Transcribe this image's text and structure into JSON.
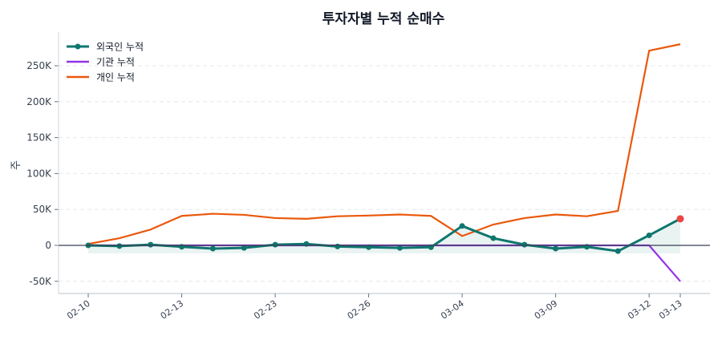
{
  "chart_data": {
    "type": "line",
    "title": "투자자별 누적 순매수",
    "xlabel": "",
    "ylabel": "주",
    "ylim": [
      -67,
      295
    ],
    "y_unit": "K",
    "yticks": [
      -50,
      0,
      50,
      100,
      150,
      200,
      250
    ],
    "ytick_labels": [
      "-50K",
      "0",
      "50K",
      "100K",
      "150K",
      "200K",
      "250K"
    ],
    "x_tick_positions": [
      0,
      3,
      6,
      9,
      12,
      15,
      18,
      19
    ],
    "x_tick_labels": [
      "02-10",
      "02-13",
      "02-23",
      "02-26",
      "03-04",
      "03-09",
      "03-12",
      "03-13"
    ],
    "grid": "y-dashed",
    "legend": "top-left",
    "series": [
      {
        "name": "외국인 누적",
        "color": "#0f766e",
        "markers": true,
        "fill": true,
        "values": [
          0,
          -1,
          1,
          -2,
          -4.5,
          -3.5,
          1,
          2,
          -1.5,
          -2.5,
          -3.5,
          -2.5,
          27,
          10,
          1,
          -4.5,
          -2,
          -8,
          14,
          37
        ]
      },
      {
        "name": "기관 누적",
        "color": "#9333ea",
        "markers": false,
        "values": [
          0,
          0,
          0,
          0,
          0,
          0,
          0,
          0,
          0,
          0,
          0,
          0,
          0,
          0,
          0,
          0,
          0,
          0,
          0,
          -50
        ]
      },
      {
        "name": "개인 누적",
        "color": "#ea580c",
        "markers": false,
        "values": [
          2,
          10,
          22,
          41,
          44,
          42.5,
          38,
          37,
          40.5,
          41.5,
          43,
          41,
          13,
          29,
          38,
          43,
          40.5,
          48,
          271,
          280
        ]
      }
    ],
    "highlight_point": {
      "series": "외국인 누적",
      "index": 19,
      "color": "#ef4444"
    }
  }
}
